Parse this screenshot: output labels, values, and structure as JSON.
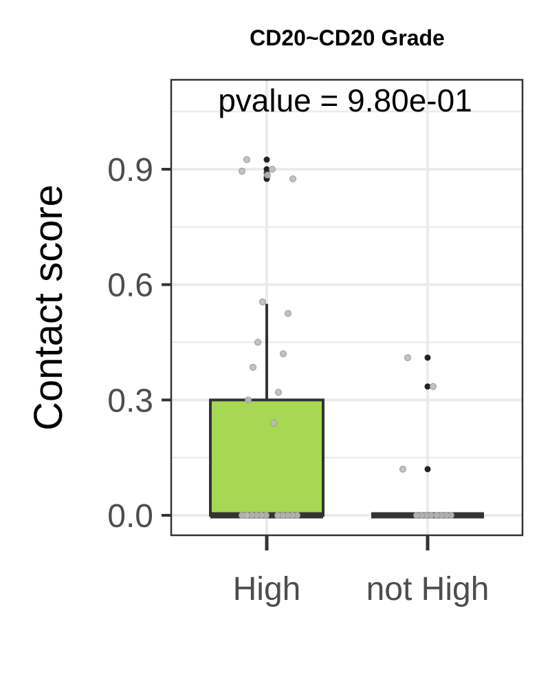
{
  "chart_data": {
    "type": "box",
    "title": "CD20~CD20 Grade",
    "annotation": "pvalue = 9.80e-01",
    "xlabel": "",
    "ylabel": "Contact score",
    "categories": [
      "High",
      "not High"
    ],
    "yticks": [
      "0.0",
      "0.3",
      "0.6",
      "0.9"
    ],
    "ylim": [
      -0.05,
      1.13
    ],
    "grid": true,
    "box_fill": "#a6d854",
    "boxes": [
      {
        "category": "High",
        "q1": 0.0,
        "median": 0.0,
        "q3": 0.3,
        "whisker_low": 0.0,
        "whisker_high": 0.55,
        "outliers": [
          0.925,
          0.9,
          0.89,
          0.88,
          0.875
        ]
      },
      {
        "category": "not High",
        "q1": 0.0,
        "median": 0.0,
        "q3": 0.0,
        "whisker_low": 0.0,
        "whisker_high": 0.0,
        "outliers": [
          0.41,
          0.335,
          0.12
        ]
      }
    ],
    "jitter_points": [
      {
        "category": "High",
        "values": [
          0.925,
          0.9,
          0.895,
          0.885,
          0.875,
          0.555,
          0.525,
          0.45,
          0.42,
          0.385,
          0.32,
          0.3,
          0.24,
          0,
          0,
          0,
          0,
          0,
          0,
          0,
          0,
          0,
          0,
          0,
          0
        ]
      },
      {
        "category": "not High",
        "values": [
          0.41,
          0.335,
          0.12,
          0,
          0,
          0,
          0,
          0,
          0,
          0,
          0
        ]
      }
    ]
  }
}
